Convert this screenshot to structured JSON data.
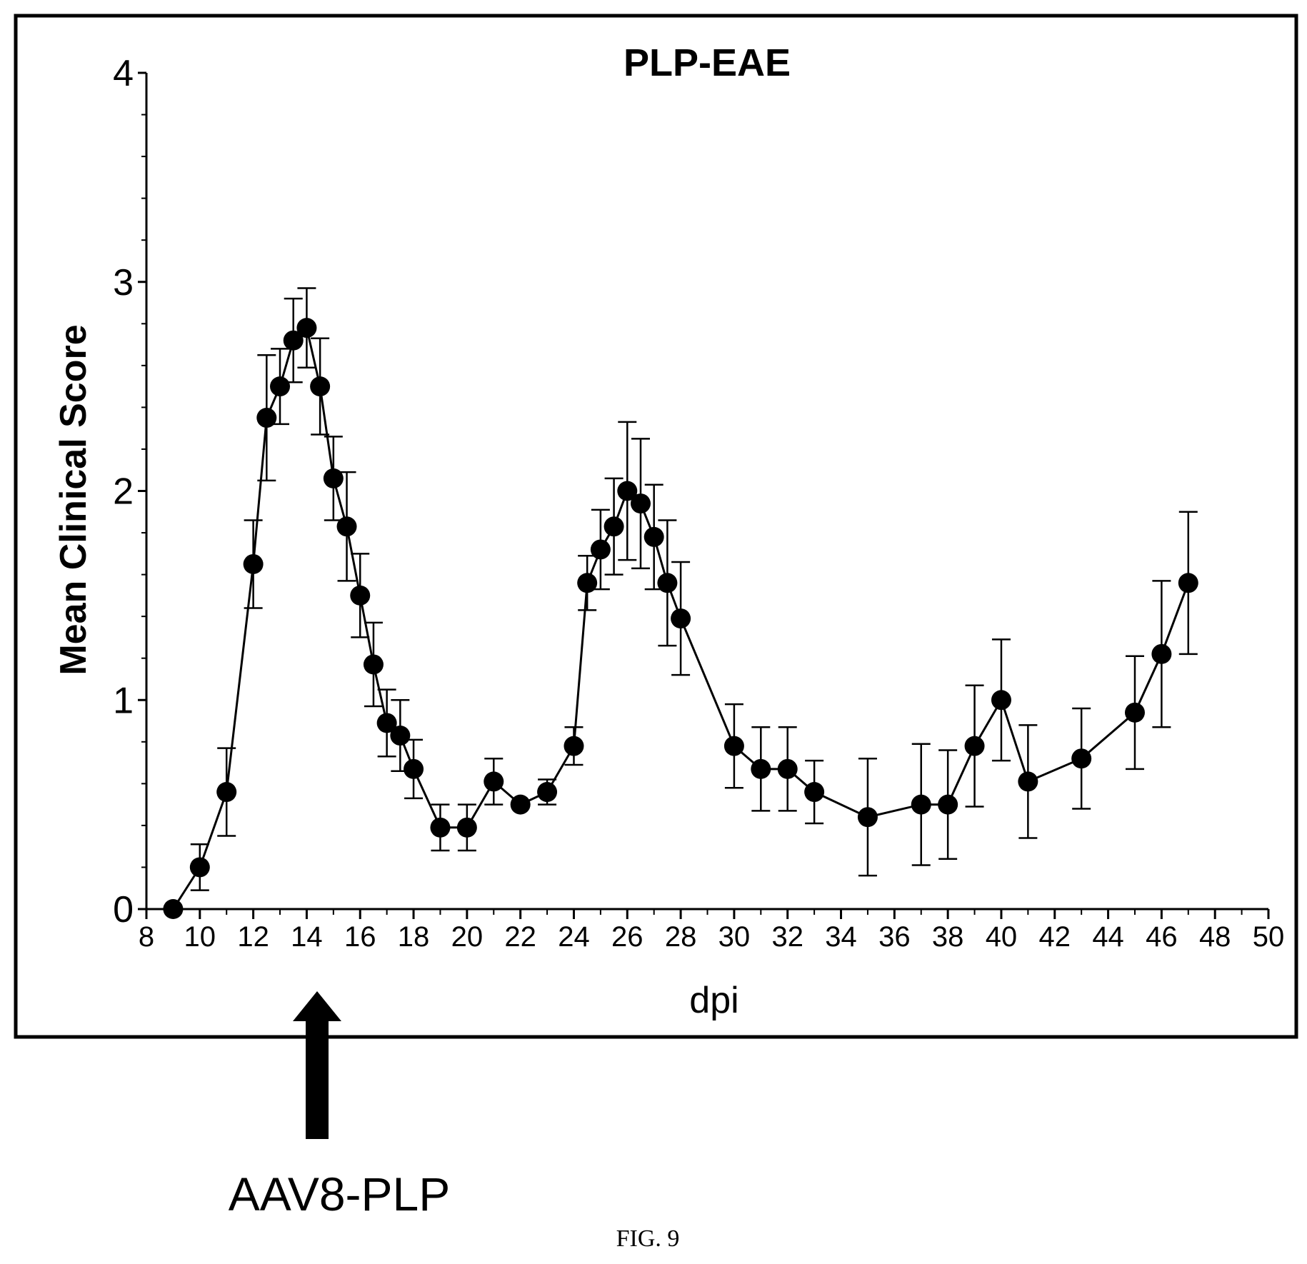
{
  "chart_data": {
    "type": "line",
    "title": "PLP-EAE",
    "xlabel": "dpi",
    "ylabel": "Mean Clinical Score",
    "xlim": [
      8,
      50
    ],
    "ylim": [
      0,
      4
    ],
    "x_ticks": [
      "8",
      "10",
      "12",
      "14",
      "16",
      "18",
      "20",
      "22",
      "24",
      "26",
      "28",
      "30",
      "32",
      "34",
      "36",
      "38",
      "40",
      "42",
      "44",
      "46",
      "48",
      "50"
    ],
    "y_ticks": [
      "0",
      "1",
      "2",
      "3",
      "4"
    ],
    "grid": false,
    "marker": "filled-circle",
    "line_color": "#000000",
    "series": [
      {
        "x": [
          9,
          10,
          11,
          12,
          12.5,
          13,
          13.5,
          14,
          14.5,
          15,
          15.5,
          16,
          16.5,
          17,
          17.5,
          18,
          19,
          20,
          21,
          22,
          23,
          24,
          24.5,
          25,
          25.5,
          26,
          26.5,
          27,
          27.5,
          28,
          30,
          31,
          32,
          33,
          35,
          37,
          38,
          39,
          40,
          41,
          43,
          45,
          46,
          47
        ],
        "values": [
          0,
          0.2,
          0.56,
          1.65,
          2.35,
          2.5,
          2.72,
          2.78,
          2.5,
          2.06,
          1.83,
          1.5,
          1.17,
          0.89,
          0.83,
          0.67,
          0.39,
          0.39,
          0.61,
          0.5,
          0.56,
          0.78,
          1.56,
          1.72,
          1.83,
          2.0,
          1.94,
          1.78,
          1.56,
          1.39,
          0.78,
          0.67,
          0.67,
          0.56,
          0.44,
          0.5,
          0.5,
          0.78,
          1.0,
          0.61,
          0.72,
          0.94,
          1.22,
          1.56
        ],
        "error": [
          0,
          0.11,
          0.21,
          0.21,
          0.3,
          0.18,
          0.2,
          0.19,
          0.23,
          0.2,
          0.26,
          0.2,
          0.2,
          0.16,
          0.17,
          0.14,
          0.11,
          0.11,
          0.11,
          0,
          0.06,
          0.09,
          0.13,
          0.19,
          0.23,
          0.33,
          0.31,
          0.25,
          0.3,
          0.27,
          0.2,
          0.2,
          0.2,
          0.15,
          0.28,
          0.29,
          0.26,
          0.29,
          0.29,
          0.27,
          0.24,
          0.27,
          0.35,
          0.34
        ]
      }
    ],
    "annotation": {
      "text": "AAV8-PLP",
      "x": 14.5,
      "symbol": "up-arrow"
    }
  },
  "caption": "FIG. 9"
}
